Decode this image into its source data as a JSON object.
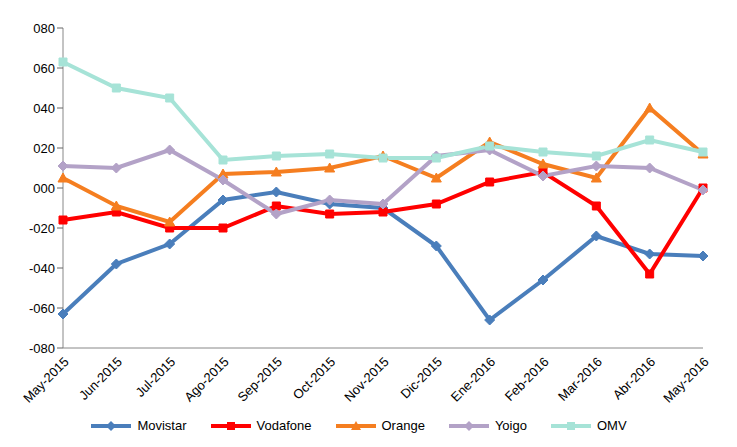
{
  "chart_data": {
    "type": "line",
    "categories": [
      "May-2015",
      "Jun-2015",
      "Jul-2015",
      "Ago-2015",
      "Sep-2015",
      "Oct-2015",
      "Nov-2015",
      "Dic-2015",
      "Ene-2016",
      "Feb-2016",
      "Mar-2016",
      "Abr-2016",
      "May-2016"
    ],
    "series": [
      {
        "name": "Movistar",
        "color": "#4a7ebb",
        "marker": "diamond",
        "values": [
          -63,
          -38,
          -28,
          -6,
          -2,
          -8,
          -10,
          -29,
          -66,
          -46,
          -24,
          -33,
          -34
        ]
      },
      {
        "name": "Vodafone",
        "color": "#ff0000",
        "marker": "square",
        "values": [
          -16,
          -12,
          -20,
          -20,
          -9,
          -13,
          -12,
          -8,
          3,
          8,
          -9,
          -43,
          0
        ]
      },
      {
        "name": "Orange",
        "color": "#f57e20",
        "marker": "triangle",
        "values": [
          5,
          -9,
          -17,
          7,
          8,
          10,
          16,
          5,
          23,
          12,
          5,
          40,
          17
        ]
      },
      {
        "name": "Yoigo",
        "color": "#b3a2c7",
        "marker": "diamond",
        "values": [
          11,
          10,
          19,
          4,
          -13,
          -6,
          -8,
          16,
          19,
          6,
          11,
          10,
          -1
        ]
      },
      {
        "name": "OMV",
        "color": "#a6e3d7",
        "marker": "square",
        "values": [
          63,
          50,
          45,
          14,
          16,
          17,
          15,
          15,
          21,
          18,
          16,
          24,
          18
        ]
      }
    ],
    "ylim": [
      -80,
      80
    ],
    "yticks": [
      {
        "value": -80,
        "label": "-080"
      },
      {
        "value": -60,
        "label": "-060"
      },
      {
        "value": -40,
        "label": "-040"
      },
      {
        "value": -20,
        "label": "-020"
      },
      {
        "value": 0,
        "label": "000"
      },
      {
        "value": 20,
        "label": "020"
      },
      {
        "value": 40,
        "label": "040"
      },
      {
        "value": 60,
        "label": "060"
      },
      {
        "value": 80,
        "label": "080"
      }
    ],
    "grid": false,
    "legend": "bottom"
  }
}
